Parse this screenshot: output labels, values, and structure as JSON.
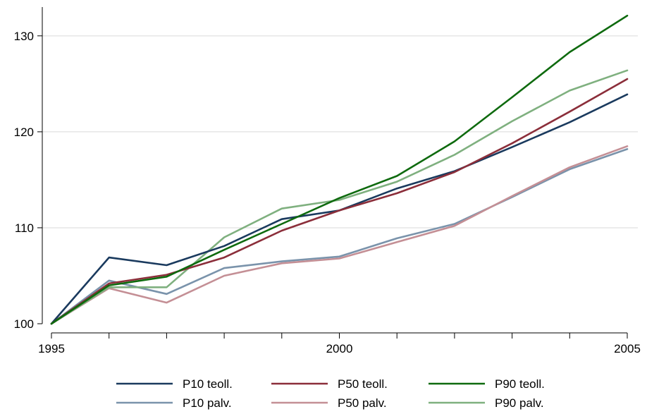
{
  "chart_data": {
    "type": "line",
    "title": "",
    "xlabel": "",
    "ylabel": "",
    "x": [
      1995,
      1996,
      1997,
      1998,
      1999,
      2000,
      2001,
      2002,
      2003,
      2004,
      2005
    ],
    "xlim": [
      1995,
      2005
    ],
    "ylim": [
      100,
      133
    ],
    "x_ticks": [
      1995,
      2000,
      2005
    ],
    "x_minor_ticks": [
      1996,
      1997,
      1998,
      1999,
      2001,
      2002,
      2003,
      2004
    ],
    "y_ticks": [
      100,
      110,
      120,
      130
    ],
    "grid": "horizontal",
    "legend_position": "bottom",
    "series": [
      {
        "name": "P10 teoll.",
        "color": "#1a3a5e",
        "values": [
          100,
          106.9,
          106.1,
          108.1,
          110.9,
          111.8,
          114.1,
          115.9,
          118.4,
          121.0,
          123.9
        ]
      },
      {
        "name": "P50 teoll.",
        "color": "#8b2e3a",
        "values": [
          100,
          104.2,
          105.1,
          106.9,
          109.7,
          111.8,
          113.6,
          115.8,
          118.8,
          122.1,
          125.5
        ]
      },
      {
        "name": "P90 teoll.",
        "color": "#0e6a0e",
        "values": [
          100,
          104.0,
          104.9,
          107.7,
          110.4,
          113.1,
          115.4,
          119.0,
          123.6,
          128.3,
          132.1
        ]
      },
      {
        "name": "P10 palv.",
        "color": "#7a93ab",
        "values": [
          100,
          104.5,
          103.1,
          105.8,
          106.5,
          107.0,
          108.9,
          110.4,
          113.2,
          116.1,
          118.2
        ]
      },
      {
        "name": "P50 palv.",
        "color": "#c48f95",
        "values": [
          100,
          103.7,
          102.2,
          105.0,
          106.3,
          106.8,
          108.5,
          110.2,
          113.3,
          116.3,
          118.5
        ]
      },
      {
        "name": "P90 palv.",
        "color": "#7fb07f",
        "values": [
          100,
          103.8,
          103.8,
          109.0,
          112.0,
          112.9,
          114.8,
          117.6,
          121.1,
          124.3,
          126.4
        ]
      }
    ]
  }
}
